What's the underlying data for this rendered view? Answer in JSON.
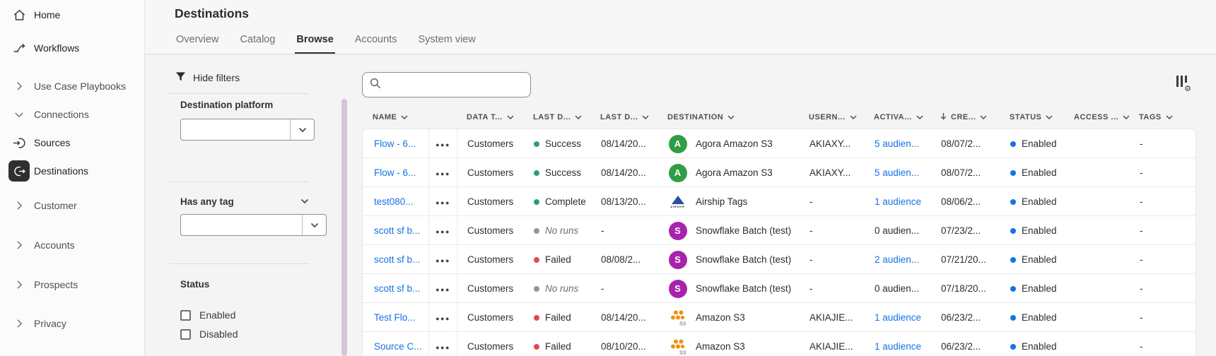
{
  "colors": {
    "link_blue": "#1473e6",
    "enabled_blue": "#1473e6",
    "success_green": "#2d9d78",
    "failed_red": "#e34850",
    "noruns_gray": "#959595",
    "agora_avatar_green": "#2f9e44",
    "snowflake_avatar_purple": "#a823ab",
    "s3_orange": "#ef9011",
    "airship_navy": "#27519f"
  },
  "sidebar": {
    "items": [
      {
        "label": "Home",
        "icon": "home-icon"
      },
      {
        "label": "Workflows",
        "icon": "workflows-icon"
      },
      {
        "label": "Use Case Playbooks",
        "icon": "chevron-right-icon",
        "class": "muted"
      },
      {
        "label": "Connections",
        "icon": "chevron-down-icon",
        "class": "muted"
      },
      {
        "label": "Sources",
        "icon": "sources-icon"
      },
      {
        "label": "Destinations",
        "icon": "destinations-icon",
        "class": "active"
      },
      {
        "label": "Customer",
        "icon": "chevron-right-icon",
        "class": "muted"
      },
      {
        "label": "Accounts",
        "icon": "chevron-right-icon",
        "class": "muted"
      },
      {
        "label": "Prospects",
        "icon": "chevron-right-icon",
        "class": "muted"
      },
      {
        "label": "Privacy",
        "icon": "chevron-right-icon",
        "class": "muted"
      }
    ]
  },
  "header": {
    "title": "Destinations",
    "tabs": [
      {
        "label": "Overview"
      },
      {
        "label": "Catalog"
      },
      {
        "label": "Browse",
        "class": "active"
      },
      {
        "label": "Accounts"
      },
      {
        "label": "System view"
      }
    ]
  },
  "filters": {
    "toggle_label": "Hide filters",
    "platform_label": "Destination platform",
    "platform_value": "",
    "tag_label": "Has any tag",
    "tag_value": "",
    "status_label": "Status",
    "status_options": [
      {
        "label": "Enabled",
        "checked": false
      },
      {
        "label": "Disabled",
        "checked": false
      }
    ]
  },
  "toolbar": {
    "search_value": "",
    "search_placeholder": ""
  },
  "table": {
    "columns": [
      {
        "key": "name",
        "label": "NAME"
      },
      {
        "key": "actions",
        "label": ""
      },
      {
        "key": "datatype",
        "label": "DATA T..."
      },
      {
        "key": "runstatus",
        "label": "LAST D..."
      },
      {
        "key": "rundate",
        "label": "LAST D..."
      },
      {
        "key": "dest",
        "label": "DESTINATION"
      },
      {
        "key": "user",
        "label": "USERN..."
      },
      {
        "key": "activated",
        "label": "ACTIVA..."
      },
      {
        "key": "created",
        "label": "CRE...",
        "sorted": "desc"
      },
      {
        "key": "status",
        "label": "STATUS"
      },
      {
        "key": "access",
        "label": "ACCESS ..."
      },
      {
        "key": "tags",
        "label": "TAGS"
      }
    ],
    "rows": [
      {
        "name": "Flow - 6...",
        "actions_icon": "more-actions-icon",
        "data_type": "Customers",
        "run_status": "Success",
        "run_class": "success",
        "last_run_date": "08/14/20...",
        "destination": "Agora Amazon S3",
        "dest_icon": "agora-avatar",
        "username": "AKIAXY...",
        "activated": "5 audien...",
        "activated_class": "link",
        "activated_inter": "true",
        "created": "08/07/2...",
        "status": "Enabled",
        "access": "",
        "tags": "-"
      },
      {
        "name": "Flow - 6...",
        "actions_icon": "more-actions-icon",
        "data_type": "Customers",
        "run_status": "Success",
        "run_class": "success",
        "last_run_date": "08/14/20...",
        "destination": "Agora Amazon S3",
        "dest_icon": "agora-avatar",
        "username": "AKIAXY...",
        "activated": "5 audien...",
        "activated_class": "link",
        "activated_inter": "true",
        "created": "08/07/2...",
        "status": "Enabled",
        "access": "",
        "tags": "-"
      },
      {
        "name": "test080...",
        "actions_icon": "more-actions-icon",
        "data_type": "Customers",
        "run_status": "Completed",
        "run_class": "success",
        "last_run_date": "08/13/20...",
        "destination": "Airship Tags",
        "dest_icon": "airship-logo",
        "username": "-",
        "activated": "1 audience",
        "activated_class": "link",
        "activated_inter": "true",
        "created": "08/06/2...",
        "status": "Enabled",
        "access": "",
        "tags": "-"
      },
      {
        "name": "scott sf b...",
        "actions_icon": "more-actions-icon",
        "data_type": "Customers",
        "run_status": "No runs",
        "run_class": "noruns",
        "last_run_date": "-",
        "destination": "Snowflake Batch (test)",
        "dest_icon": "snowflake-avatar",
        "username": "-",
        "activated": "0 audien...",
        "activated_class": "plain",
        "activated_inter": "false",
        "created": "07/23/2...",
        "status": "Enabled",
        "access": "",
        "tags": "-"
      },
      {
        "name": "scott sf b...",
        "actions_icon": "more-actions-icon",
        "data_type": "Customers",
        "run_status": "Failed",
        "run_class": "failed",
        "last_run_date": "08/08/2...",
        "destination": "Snowflake Batch (test)",
        "dest_icon": "snowflake-avatar",
        "username": "-",
        "activated": "2 audien...",
        "activated_class": "link",
        "activated_inter": "true",
        "created": "07/21/20...",
        "status": "Enabled",
        "access": "",
        "tags": "-"
      },
      {
        "name": "scott sf b...",
        "actions_icon": "more-actions-icon",
        "data_type": "Customers",
        "run_status": "No runs",
        "run_class": "noruns",
        "last_run_date": "-",
        "destination": "Snowflake Batch (test)",
        "dest_icon": "snowflake-avatar",
        "username": "-",
        "activated": "0 audien...",
        "activated_class": "plain",
        "activated_inter": "false",
        "created": "07/18/20...",
        "status": "Enabled",
        "access": "",
        "tags": "-"
      },
      {
        "name": "Test Flo...",
        "actions_icon": "more-actions-icon",
        "data_type": "Customers",
        "run_status": "Failed",
        "run_class": "failed",
        "last_run_date": "08/14/20...",
        "destination": "Amazon S3",
        "dest_icon": "s3-logo",
        "username": "AKIAJIE...",
        "activated": "1 audience",
        "activated_class": "link",
        "activated_inter": "true",
        "created": "06/23/2...",
        "status": "Enabled",
        "access": "",
        "tags": "-"
      },
      {
        "name": "Source C...",
        "actions_icon": "more-actions-icon",
        "data_type": "Customers",
        "run_status": "Failed",
        "run_class": "failed",
        "last_run_date": "08/10/20...",
        "destination": "Amazon S3",
        "dest_icon": "s3-logo",
        "username": "AKIAJIE...",
        "activated": "1 audience",
        "activated_class": "link",
        "activated_inter": "true",
        "created": "06/23/2...",
        "status": "Enabled",
        "access": "",
        "tags": "-"
      }
    ]
  }
}
